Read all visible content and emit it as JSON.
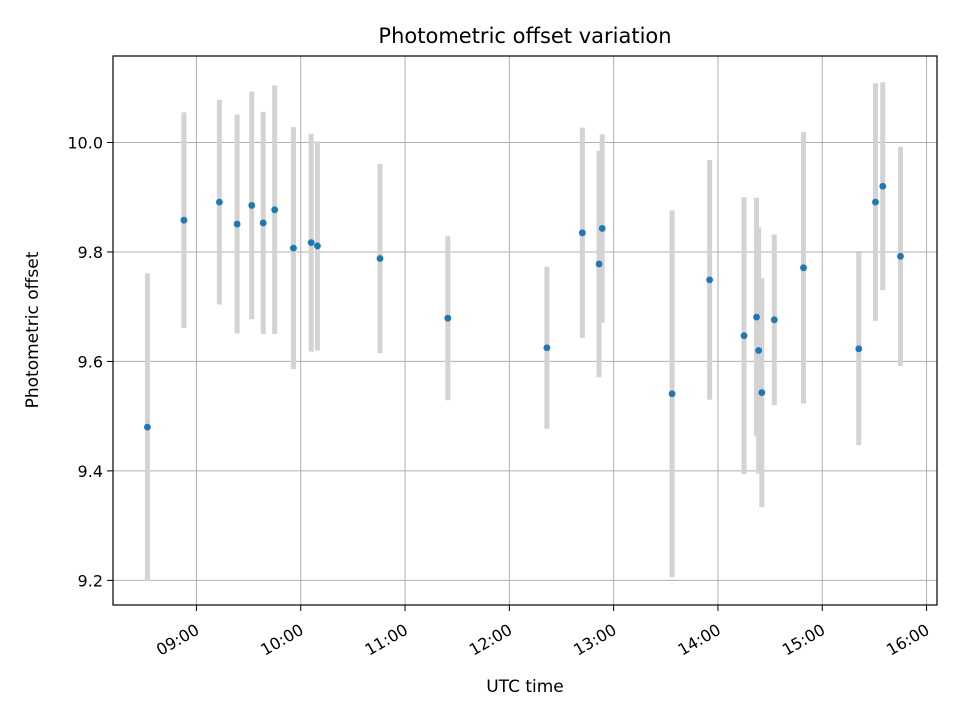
{
  "chart_data": {
    "type": "scatter",
    "title": "Photometric offset variation",
    "xlabel": "UTC time",
    "ylabel": "Photometric offset",
    "xlim": [
      8.2,
      16.1
    ],
    "ylim": [
      9.155,
      10.158
    ],
    "grid": true,
    "legend": "none",
    "xticks": [
      {
        "value": 9,
        "label": "09:00"
      },
      {
        "value": 10,
        "label": "10:00"
      },
      {
        "value": 11,
        "label": "11:00"
      },
      {
        "value": 12,
        "label": "12:00"
      },
      {
        "value": 13,
        "label": "13:00"
      },
      {
        "value": 14,
        "label": "14:00"
      },
      {
        "value": 15,
        "label": "15:00"
      },
      {
        "value": 16,
        "label": "16:00"
      }
    ],
    "yticks": [
      {
        "value": 9.2,
        "label": "9.2"
      },
      {
        "value": 9.4,
        "label": "9.4"
      },
      {
        "value": 9.6,
        "label": "9.6"
      },
      {
        "value": 9.8,
        "label": "9.8"
      },
      {
        "value": 10.0,
        "label": "10.0"
      }
    ],
    "colors": {
      "point": "#1f77b4",
      "errorbar": "#d3d3d3",
      "grid": "#b0b0b0",
      "axis": "#000000"
    },
    "series": [
      {
        "name": "offset",
        "points": [
          {
            "t": 8.53,
            "y": 9.48,
            "err": 0.281
          },
          {
            "t": 8.88,
            "y": 9.858,
            "err": 0.197
          },
          {
            "t": 9.22,
            "y": 9.891,
            "err": 0.187
          },
          {
            "t": 9.39,
            "y": 9.851,
            "err": 0.2
          },
          {
            "t": 9.53,
            "y": 9.885,
            "err": 0.208
          },
          {
            "t": 9.64,
            "y": 9.853,
            "err": 0.203
          },
          {
            "t": 9.75,
            "y": 9.877,
            "err": 0.227
          },
          {
            "t": 9.93,
            "y": 9.807,
            "err": 0.221
          },
          {
            "t": 10.1,
            "y": 9.817,
            "err": 0.199
          },
          {
            "t": 10.16,
            "y": 9.811,
            "err": 0.191
          },
          {
            "t": 10.76,
            "y": 9.788,
            "err": 0.173
          },
          {
            "t": 11.41,
            "y": 9.679,
            "err": 0.15
          },
          {
            "t": 12.36,
            "y": 9.625,
            "err": 0.148
          },
          {
            "t": 12.7,
            "y": 9.835,
            "err": 0.192
          },
          {
            "t": 12.86,
            "y": 9.778,
            "err": 0.207
          },
          {
            "t": 12.89,
            "y": 9.843,
            "err": 0.172
          },
          {
            "t": 13.56,
            "y": 9.541,
            "err": 0.335
          },
          {
            "t": 13.92,
            "y": 9.749,
            "err": 0.219
          },
          {
            "t": 14.25,
            "y": 9.647,
            "err": 0.253
          },
          {
            "t": 14.37,
            "y": 9.681,
            "err": 0.218
          },
          {
            "t": 14.39,
            "y": 9.62,
            "err": 0.225
          },
          {
            "t": 14.42,
            "y": 9.543,
            "err": 0.209
          },
          {
            "t": 14.54,
            "y": 9.676,
            "err": 0.156
          },
          {
            "t": 14.82,
            "y": 9.771,
            "err": 0.248
          },
          {
            "t": 15.35,
            "y": 9.623,
            "err": 0.176
          },
          {
            "t": 15.51,
            "y": 9.891,
            "err": 0.217
          },
          {
            "t": 15.58,
            "y": 9.92,
            "err": 0.19
          },
          {
            "t": 15.75,
            "y": 9.792,
            "err": 0.2
          }
        ]
      }
    ]
  }
}
